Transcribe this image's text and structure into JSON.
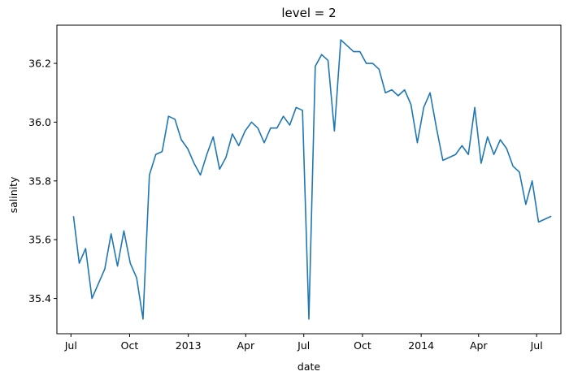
{
  "chart_data": {
    "type": "line",
    "title": "level = 2",
    "xlabel": "date",
    "ylabel": "salinity",
    "grid": false,
    "color": "#1f77b4",
    "xlim": [
      "2012-06-09",
      "2014-08-08"
    ],
    "ylim": [
      35.28,
      36.33
    ],
    "x_ticks": [
      {
        "date": "2012-07-01",
        "label": "Jul"
      },
      {
        "date": "2012-10-01",
        "label": "Oct"
      },
      {
        "date": "2013-01-01",
        "label": "2013"
      },
      {
        "date": "2013-04-01",
        "label": "Apr"
      },
      {
        "date": "2013-07-01",
        "label": "Jul"
      },
      {
        "date": "2013-10-01",
        "label": "Oct"
      },
      {
        "date": "2014-01-01",
        "label": "2014"
      },
      {
        "date": "2014-04-01",
        "label": "Apr"
      },
      {
        "date": "2014-07-01",
        "label": "Jul"
      }
    ],
    "y_ticks": [
      35.4,
      35.6,
      35.8,
      36.0,
      36.2
    ],
    "y_tick_labels": [
      "35.4",
      "35.6",
      "35.8",
      "36.0",
      "36.2"
    ],
    "series": [
      {
        "x": [
          "2012-07-05",
          "2012-07-14",
          "2012-07-24",
          "2012-08-03",
          "2012-08-13",
          "2012-08-23",
          "2012-09-02",
          "2012-09-12",
          "2012-09-22",
          "2012-10-02",
          "2012-10-12",
          "2012-10-22",
          "2012-11-01",
          "2012-11-11",
          "2012-11-21",
          "2012-12-01",
          "2012-12-11",
          "2012-12-21",
          "2012-12-31",
          "2013-01-10",
          "2013-01-20",
          "2013-01-30",
          "2013-02-09",
          "2013-02-19",
          "2013-03-01",
          "2013-03-11",
          "2013-03-21",
          "2013-03-31",
          "2013-04-10",
          "2013-04-20",
          "2013-04-30",
          "2013-05-10",
          "2013-05-20",
          "2013-05-30",
          "2013-06-09",
          "2013-06-19",
          "2013-06-29",
          "2013-07-09",
          "2013-07-19",
          "2013-07-29",
          "2013-08-08",
          "2013-08-18",
          "2013-08-28",
          "2013-09-07",
          "2013-09-17",
          "2013-09-27",
          "2013-10-07",
          "2013-10-17",
          "2013-10-27",
          "2013-11-06",
          "2013-11-16",
          "2013-11-26",
          "2013-12-06",
          "2013-12-16",
          "2013-12-26",
          "2014-01-05",
          "2014-01-15",
          "2014-01-25",
          "2014-02-04",
          "2014-02-14",
          "2014-02-24",
          "2014-03-06",
          "2014-03-16",
          "2014-03-26",
          "2014-04-05",
          "2014-04-15",
          "2014-04-25",
          "2014-05-05",
          "2014-05-15",
          "2014-05-25",
          "2014-06-04",
          "2014-06-14",
          "2014-06-24",
          "2014-07-04",
          "2014-07-14",
          "2014-07-24"
        ],
        "y": [
          35.68,
          35.52,
          35.57,
          35.4,
          35.45,
          35.5,
          35.62,
          35.51,
          35.63,
          35.52,
          35.47,
          35.33,
          35.82,
          35.89,
          35.9,
          36.02,
          36.01,
          35.94,
          35.91,
          35.86,
          35.82,
          35.89,
          35.95,
          35.84,
          35.88,
          35.96,
          35.92,
          35.97,
          36.0,
          35.98,
          35.93,
          35.98,
          35.98,
          36.02,
          35.99,
          36.05,
          36.04,
          35.33,
          36.19,
          36.23,
          36.21,
          35.97,
          36.28,
          36.26,
          36.24,
          36.24,
          36.2,
          36.2,
          36.18,
          36.1,
          36.11,
          36.09,
          36.11,
          36.06,
          35.93,
          36.05,
          36.1,
          35.98,
          35.87,
          35.88,
          35.89,
          35.92,
          35.89,
          36.05,
          35.86,
          35.95,
          35.89,
          35.94,
          35.91,
          35.85,
          35.83,
          35.72,
          35.8,
          35.66,
          35.67,
          35.68
        ]
      }
    ]
  }
}
